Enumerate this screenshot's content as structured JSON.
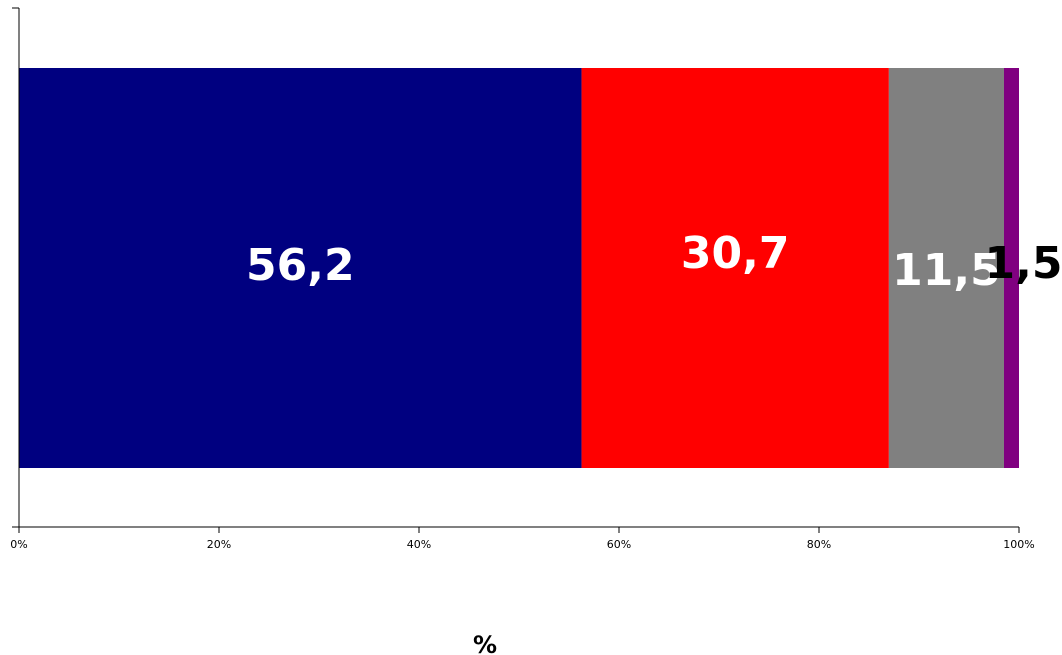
{
  "chart_data": {
    "type": "bar",
    "orientation": "horizontal",
    "stacked": "percent",
    "categories": [
      ""
    ],
    "series": [
      {
        "values": [
          56.2
        ],
        "label": "56,2",
        "color": "#000080",
        "label_color": "#ffffff"
      },
      {
        "values": [
          30.7
        ],
        "label": "30,7",
        "color": "#ff0000",
        "label_color": "#ffffff"
      },
      {
        "values": [
          11.5
        ],
        "label": "11,5",
        "color": "#808080",
        "label_color": "#ffffff"
      },
      {
        "values": [
          1.5
        ],
        "label": "1,5",
        "color": "#800080",
        "label_color": "#000000"
      }
    ],
    "xaxis": {
      "ticks": [
        0,
        20,
        40,
        60,
        80,
        100
      ],
      "tick_labels": [
        "0%",
        "20%",
        "40%",
        "60%",
        "80%",
        "100%"
      ],
      "xlim": [
        0,
        100
      ]
    },
    "xlabel": "%",
    "ylabel": "",
    "title": "",
    "grid": false,
    "legend": "none"
  }
}
